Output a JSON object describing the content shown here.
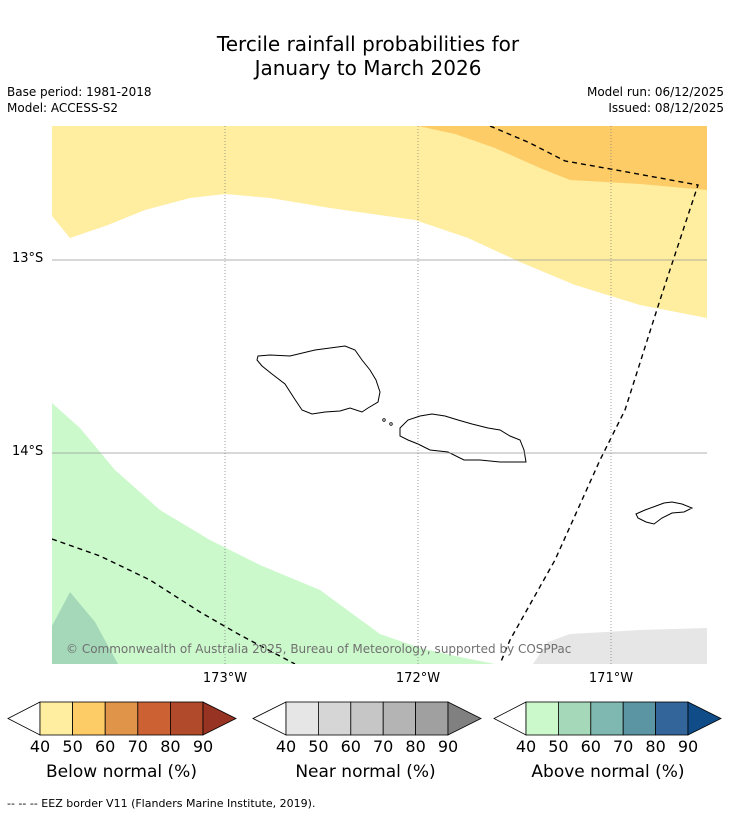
{
  "title_line1": "Tercile rainfall probabilities for",
  "title_line2": "January to March 2026",
  "meta": {
    "base_period": "Base period: 1981-2018",
    "model": "Model: ACCESS-S2",
    "model_run": "Model run: 06/12/2025",
    "issued": "Issued: 08/12/2025"
  },
  "axes": {
    "lat_labels": [
      "13°S",
      "14°S"
    ],
    "lon_labels": [
      "173°W",
      "172°W",
      "171°W"
    ]
  },
  "copyright": "© Commonwealth of Australia 2025, Bureau of Meteorology, supported by COSPPac",
  "colorbars": [
    {
      "title": "Below normal (%)",
      "ticks": [
        "40",
        "50",
        "60",
        "70",
        "80",
        "90"
      ],
      "colors": [
        "#ffeda0",
        "#fdcc66",
        "#e0944a",
        "#cc6233",
        "#b14a2a",
        "#963323"
      ]
    },
    {
      "title": "Near normal (%)",
      "ticks": [
        "40",
        "50",
        "60",
        "70",
        "80",
        "90"
      ],
      "colors": [
        "#e6e6e6",
        "#d6d6d6",
        "#c6c6c6",
        "#b4b4b4",
        "#a0a0a0",
        "#808080"
      ]
    },
    {
      "title": "Above normal (%)",
      "ticks": [
        "40",
        "50",
        "60",
        "70",
        "80",
        "90"
      ],
      "colors": [
        "#ccf9cc",
        "#a4d8b8",
        "#7fb8b0",
        "#5b95a3",
        "#33649a",
        "#0f4c88"
      ]
    }
  ],
  "footer": "--  --  -- EEZ border V11 (Flanders Marine Institute, 2019)."
}
